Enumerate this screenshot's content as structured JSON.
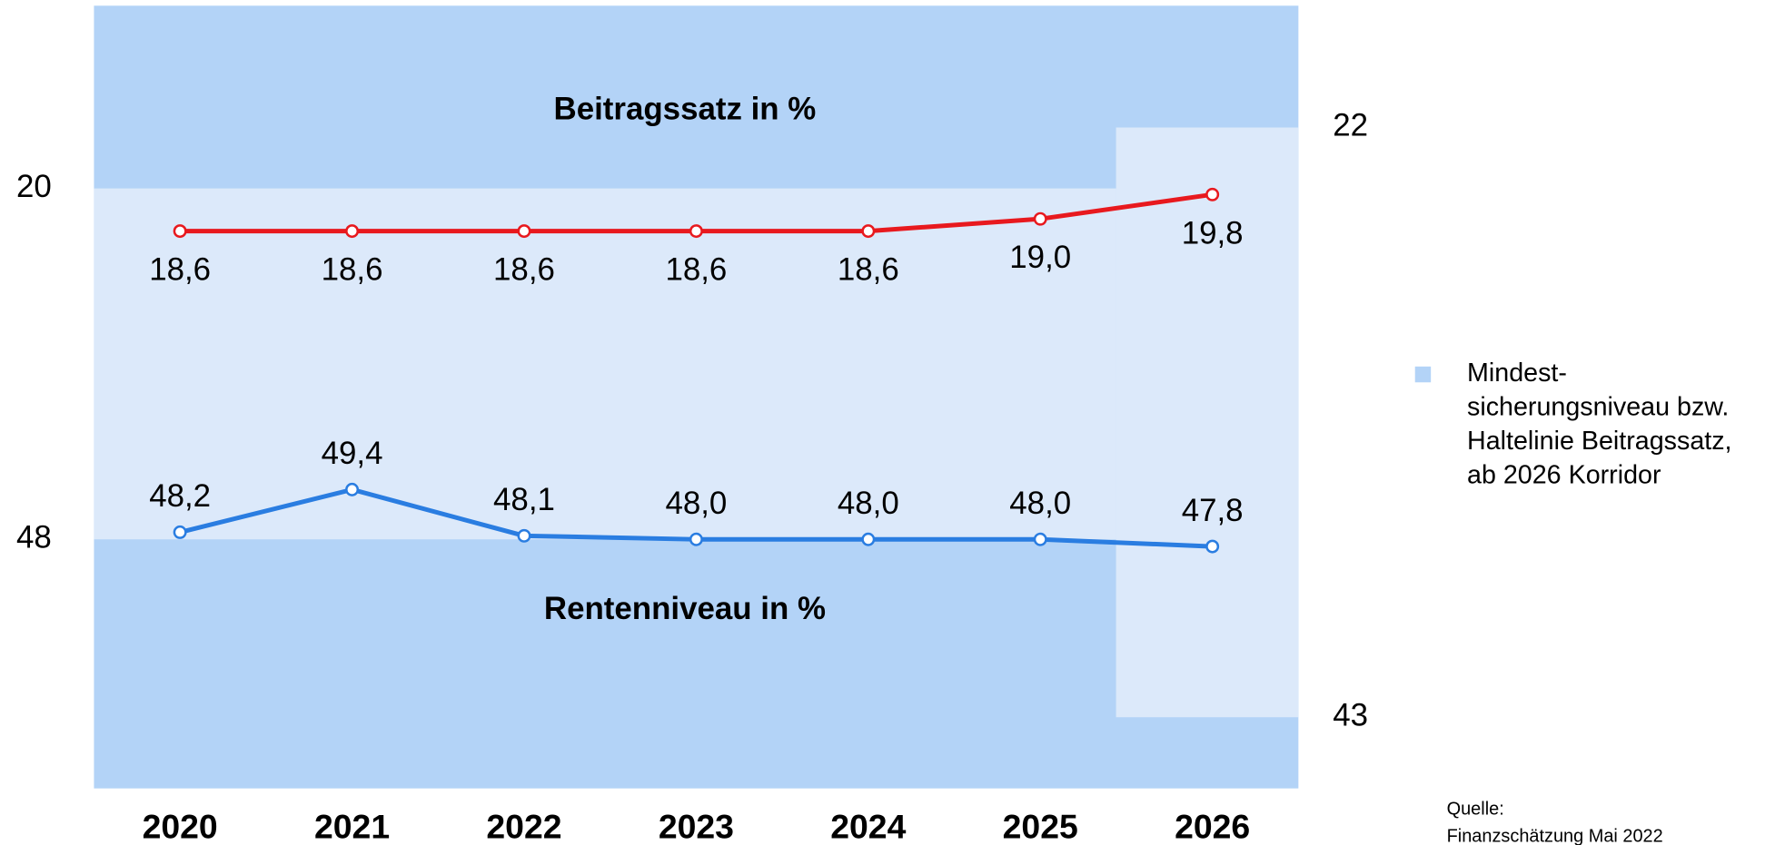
{
  "chart_data": {
    "type": "line",
    "categories": [
      "2020",
      "2021",
      "2022",
      "2023",
      "2024",
      "2025",
      "2026"
    ],
    "series": [
      {
        "name": "Beitragssatz in %",
        "color": "#e8191e",
        "values": [
          18.6,
          18.6,
          18.6,
          18.6,
          18.6,
          19.0,
          19.8
        ],
        "value_labels": [
          "18,6",
          "18,6",
          "18,6",
          "18,6",
          "18,6",
          "19,0",
          "19,8"
        ]
      },
      {
        "name": "Rentenniveau in %",
        "color": "#2a7de1",
        "axis": "y2",
        "values": [
          48.2,
          49.4,
          48.1,
          48.0,
          48.0,
          48.0,
          47.8
        ],
        "value_labels": [
          "48,2",
          "49,4",
          "48,1",
          "48,0",
          "48,0",
          "48,0",
          "47,8"
        ]
      }
    ],
    "ylim": [
      0.3,
      26.0
    ],
    "yticks": [
      20,
      22
    ],
    "y2lim": [
      41,
      63
    ],
    "y2ticks": [
      43,
      48
    ],
    "background_color": "#b3d3f7",
    "corridor_color": "#dce9fa",
    "legend": {
      "color": "#b3d3f7",
      "lines": [
        "Mindest-",
        "sicherungsniveau bzw.",
        "Haltelinie Beitragssatz,",
        "ab 2026 Korridor"
      ]
    },
    "source": [
      "Quelle:",
      "Finanzschätzung Mai 2022"
    ]
  }
}
